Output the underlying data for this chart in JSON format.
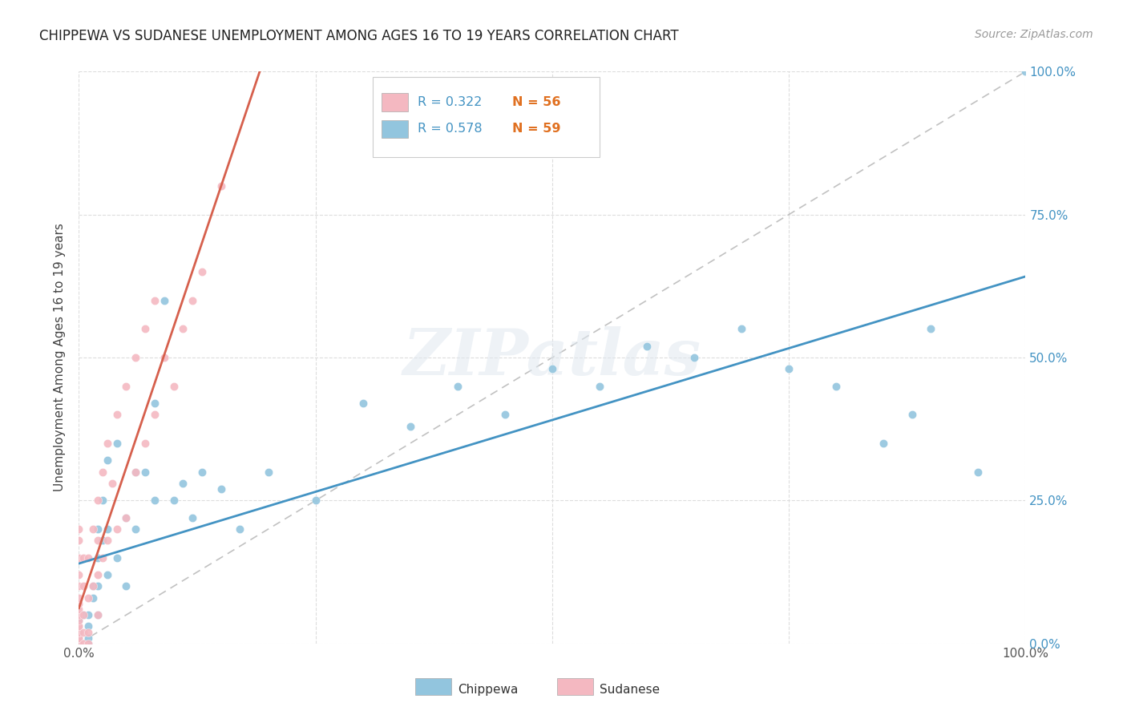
{
  "title": "CHIPPEWA VS SUDANESE UNEMPLOYMENT AMONG AGES 16 TO 19 YEARS CORRELATION CHART",
  "source": "Source: ZipAtlas.com",
  "ylabel": "Unemployment Among Ages 16 to 19 years",
  "xlim": [
    0,
    1.0
  ],
  "ylim": [
    0,
    1.0
  ],
  "chippewa_R": 0.578,
  "chippewa_N": 59,
  "sudanese_R": 0.322,
  "sudanese_N": 56,
  "chippewa_color": "#92c5de",
  "sudanese_color": "#f4b8c1",
  "chippewa_line_color": "#4393c3",
  "sudanese_line_color": "#d6604d",
  "diagonal_color": "#bbbbbb",
  "chippewa_x": [
    0.0,
    0.0,
    0.0,
    0.0,
    0.0,
    0.0,
    0.0,
    0.0,
    0.0,
    0.005,
    0.01,
    0.01,
    0.01,
    0.01,
    0.015,
    0.015,
    0.02,
    0.02,
    0.02,
    0.02,
    0.025,
    0.025,
    0.03,
    0.03,
    0.03,
    0.04,
    0.04,
    0.05,
    0.05,
    0.06,
    0.06,
    0.07,
    0.08,
    0.08,
    0.09,
    0.1,
    0.11,
    0.12,
    0.13,
    0.15,
    0.17,
    0.2,
    0.25,
    0.3,
    0.35,
    0.4,
    0.45,
    0.5,
    0.55,
    0.6,
    0.65,
    0.7,
    0.75,
    0.8,
    0.85,
    0.88,
    0.9,
    0.95,
    1.0
  ],
  "chippewa_y": [
    0.0,
    0.0,
    0.0,
    0.01,
    0.01,
    0.02,
    0.02,
    0.03,
    0.04,
    0.05,
    0.0,
    0.01,
    0.03,
    0.05,
    0.08,
    0.1,
    0.05,
    0.1,
    0.15,
    0.2,
    0.18,
    0.25,
    0.12,
    0.2,
    0.32,
    0.15,
    0.35,
    0.1,
    0.22,
    0.2,
    0.3,
    0.3,
    0.25,
    0.42,
    0.6,
    0.25,
    0.28,
    0.22,
    0.3,
    0.27,
    0.2,
    0.3,
    0.25,
    0.42,
    0.38,
    0.45,
    0.4,
    0.48,
    0.45,
    0.52,
    0.5,
    0.55,
    0.48,
    0.45,
    0.35,
    0.4,
    0.55,
    0.3,
    1.0
  ],
  "sudanese_x": [
    0.0,
    0.0,
    0.0,
    0.0,
    0.0,
    0.0,
    0.0,
    0.0,
    0.0,
    0.0,
    0.0,
    0.0,
    0.0,
    0.0,
    0.0,
    0.0,
    0.0,
    0.0,
    0.0,
    0.0,
    0.005,
    0.005,
    0.005,
    0.005,
    0.005,
    0.01,
    0.01,
    0.01,
    0.01,
    0.015,
    0.015,
    0.02,
    0.02,
    0.02,
    0.02,
    0.025,
    0.025,
    0.03,
    0.03,
    0.035,
    0.04,
    0.04,
    0.05,
    0.05,
    0.06,
    0.06,
    0.07,
    0.07,
    0.08,
    0.08,
    0.09,
    0.1,
    0.11,
    0.12,
    0.13,
    0.15
  ],
  "sudanese_y": [
    0.0,
    0.0,
    0.0,
    0.0,
    0.01,
    0.01,
    0.02,
    0.02,
    0.03,
    0.03,
    0.04,
    0.05,
    0.06,
    0.07,
    0.08,
    0.1,
    0.12,
    0.15,
    0.18,
    0.2,
    0.0,
    0.02,
    0.05,
    0.1,
    0.15,
    0.0,
    0.02,
    0.08,
    0.15,
    0.1,
    0.2,
    0.05,
    0.12,
    0.18,
    0.25,
    0.15,
    0.3,
    0.18,
    0.35,
    0.28,
    0.2,
    0.4,
    0.22,
    0.45,
    0.3,
    0.5,
    0.35,
    0.55,
    0.4,
    0.6,
    0.5,
    0.45,
    0.55,
    0.6,
    0.65,
    0.8
  ],
  "watermark": "ZIPatlas",
  "background_color": "#ffffff",
  "grid_color": "#dddddd",
  "legend_R_color": "#4393c3",
  "legend_N_color": "#e07020",
  "right_tick_color": "#4393c3"
}
